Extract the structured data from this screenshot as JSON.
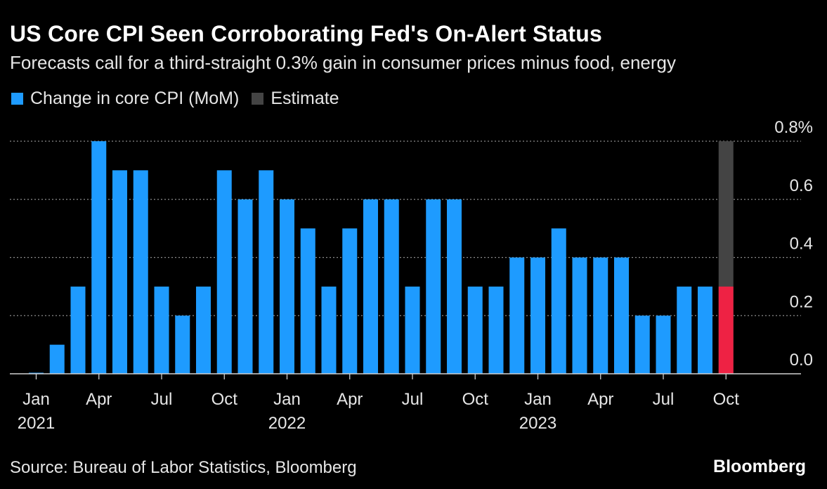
{
  "title": "US Core CPI Seen Corroborating Fed's On-Alert Status",
  "subtitle": "Forecasts call for a third-straight 0.3% gain in consumer prices minus food, energy",
  "legend": [
    {
      "label": "Change in core CPI (MoM)",
      "color": "#1e9bff"
    },
    {
      "label": "Estimate",
      "color": "#444444"
    }
  ],
  "source": "Source: Bureau of Labor Statistics, Bloomberg",
  "brand": "Bloomberg",
  "chart_data": {
    "type": "bar",
    "categories": [
      "Jan 2021",
      "Feb 2021",
      "Mar 2021",
      "Apr 2021",
      "May 2021",
      "Jun 2021",
      "Jul 2021",
      "Aug 2021",
      "Sep 2021",
      "Oct 2021",
      "Nov 2021",
      "Dec 2021",
      "Jan 2022",
      "Feb 2022",
      "Mar 2022",
      "Apr 2022",
      "May 2022",
      "Jun 2022",
      "Jul 2022",
      "Aug 2022",
      "Sep 2022",
      "Oct 2022",
      "Nov 2022",
      "Dec 2022",
      "Jan 2023",
      "Feb 2023",
      "Mar 2023",
      "Apr 2023",
      "May 2023",
      "Jun 2023",
      "Jul 2023",
      "Aug 2023",
      "Sep 2023",
      "Oct 2023"
    ],
    "series": [
      {
        "name": "Change in core CPI (MoM)",
        "color": "#1e9bff",
        "values": [
          0.0,
          0.1,
          0.3,
          0.8,
          0.7,
          0.7,
          0.3,
          0.2,
          0.3,
          0.7,
          0.6,
          0.7,
          0.6,
          0.5,
          0.3,
          0.5,
          0.6,
          0.6,
          0.3,
          0.6,
          0.6,
          0.3,
          0.3,
          0.4,
          0.4,
          0.5,
          0.4,
          0.4,
          0.4,
          0.2,
          0.2,
          0.3,
          0.3,
          0.3
        ]
      },
      {
        "name": "Estimate",
        "color": "#444444",
        "values": [
          null,
          null,
          null,
          null,
          null,
          null,
          null,
          null,
          null,
          null,
          null,
          null,
          null,
          null,
          null,
          null,
          null,
          null,
          null,
          null,
          null,
          null,
          null,
          null,
          null,
          null,
          null,
          null,
          null,
          null,
          null,
          null,
          null,
          0.8
        ]
      }
    ],
    "estimate_base_color": "#ee2244",
    "x_ticks": [
      {
        "index": 0,
        "label": "Jan",
        "year": "2021"
      },
      {
        "index": 3,
        "label": "Apr",
        "year": ""
      },
      {
        "index": 6,
        "label": "Jul",
        "year": ""
      },
      {
        "index": 9,
        "label": "Oct",
        "year": ""
      },
      {
        "index": 12,
        "label": "Jan",
        "year": "2022"
      },
      {
        "index": 15,
        "label": "Apr",
        "year": ""
      },
      {
        "index": 18,
        "label": "Jul",
        "year": ""
      },
      {
        "index": 21,
        "label": "Oct",
        "year": ""
      },
      {
        "index": 24,
        "label": "Jan",
        "year": "2023"
      },
      {
        "index": 27,
        "label": "Apr",
        "year": ""
      },
      {
        "index": 30,
        "label": "Jul",
        "year": ""
      },
      {
        "index": 33,
        "label": "Oct",
        "year": ""
      }
    ],
    "y_ticks": [
      {
        "value": 0.0,
        "label": "0.0"
      },
      {
        "value": 0.2,
        "label": "0.2"
      },
      {
        "value": 0.4,
        "label": "0.4"
      },
      {
        "value": 0.6,
        "label": "0.6"
      },
      {
        "value": 0.8,
        "label": "0.8%"
      }
    ],
    "ylim": [
      0,
      0.8
    ],
    "grid": true,
    "legend_position": "top-left",
    "xlabel": "",
    "ylabel": ""
  }
}
